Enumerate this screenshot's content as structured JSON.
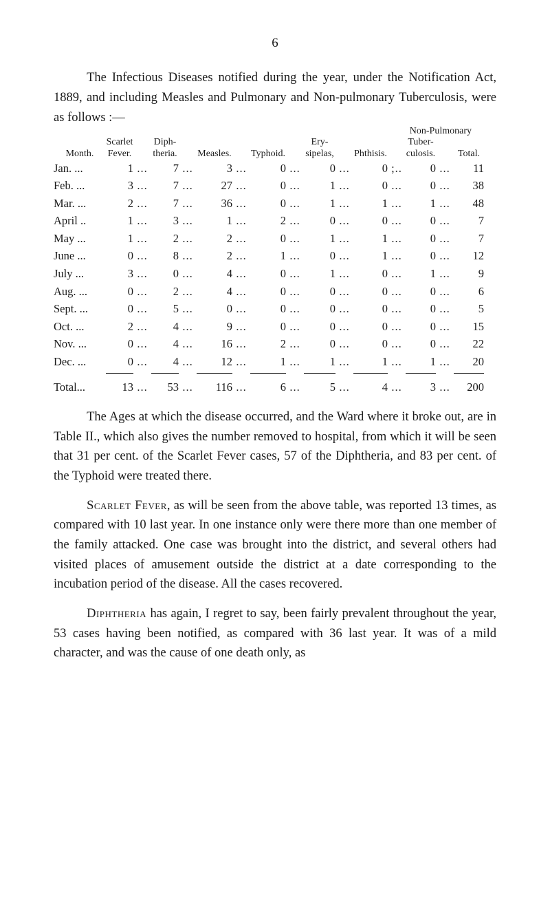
{
  "page_number": "6",
  "intro": "The Infectious Diseases notified during the year, under the Notification Act, 1889, and including Measles and Pulmonary and Non-pulmonary Tuberculosis, were as follows :—",
  "table": {
    "super_header": "Non-Pulmonary",
    "headers": {
      "month": "Month.",
      "scarlet": "Scarlet\nFever.",
      "diph": "Diph-\ntheria.",
      "measles": "Measles.",
      "typhoid": "Typhoid.",
      "ery": "Ery-\nsipelas,",
      "phthisis": "Phthisis.",
      "tuber": "Tuber-\nculosis.",
      "total": "Total."
    },
    "rows": [
      {
        "m": "Jan. ...",
        "v": [
          "1",
          "7",
          "3",
          "0",
          "0",
          "0",
          "0",
          "11"
        ]
      },
      {
        "m": "Feb. ...",
        "v": [
          "3",
          "7",
          "27",
          "0",
          "1",
          "0",
          "0",
          "38"
        ]
      },
      {
        "m": "Mar. ...",
        "v": [
          "2",
          "7",
          "36",
          "0",
          "1",
          "1",
          "1",
          "48"
        ]
      },
      {
        "m": "April ..",
        "v": [
          "1",
          "3",
          "1",
          "2",
          "0",
          "0",
          "0",
          "7"
        ]
      },
      {
        "m": "May ...",
        "v": [
          "1",
          "2",
          "2",
          "0",
          "1",
          "1",
          "0",
          "7"
        ]
      },
      {
        "m": "June ...",
        "v": [
          "0",
          "8",
          "2",
          "1",
          "0",
          "1",
          "0",
          "12"
        ]
      },
      {
        "m": "July ...",
        "v": [
          "3",
          "0",
          "4",
          "0",
          "1",
          "0",
          "1",
          "9"
        ]
      },
      {
        "m": "Aug. ...",
        "v": [
          "0",
          "2",
          "4",
          "0",
          "0",
          "0",
          "0",
          "6"
        ]
      },
      {
        "m": "Sept. ...",
        "v": [
          "0",
          "5",
          "0",
          "0",
          "0",
          "0",
          "0",
          "5"
        ]
      },
      {
        "m": "Oct. ...",
        "v": [
          "2",
          "4",
          "9",
          "0",
          "0",
          "0",
          "0",
          "15"
        ]
      },
      {
        "m": "Nov. ...",
        "v": [
          "0",
          "4",
          "16",
          "2",
          "0",
          "0",
          "0",
          "22"
        ]
      },
      {
        "m": "Dec. ...",
        "v": [
          "0",
          "4",
          "12",
          "1",
          "1",
          "1",
          "1",
          "20"
        ]
      }
    ],
    "total_row": {
      "m": "Total...",
      "v": [
        "13",
        "53",
        "116",
        "6",
        "5",
        "4",
        "3",
        "200"
      ]
    },
    "dots": "...",
    "semidots": ";.."
  },
  "ages_para_1a": "The Ages at which the disease occurred, and the Ward where it broke out, are in Table II., which also gives the number removed to hospital, from which it will be seen that 31 per cent. of the Scarlet Fever cases, 57 of the Diphtheria, and 83 per cent. of the Typhoid were treated there.",
  "scarlet_label": "Scarlet Fever",
  "scarlet_rest": ", as will be seen from the above table, was reported 13 times, as compared with 10 last year. In one instance only were there more than one member of the family attacked. One case was brought into the district, and several others had visited places of amuse­ment outside the district at a date corresponding to the incubation period of the disease. All the cases recovered.",
  "diph_label": "Diphtheria",
  "diph_rest": " has again, I regret to say, been fairly prevalent throughout the year, 53 cases having been notified, as compared with 36 last year. It was of a mild character, and was the cause of one death only, as"
}
